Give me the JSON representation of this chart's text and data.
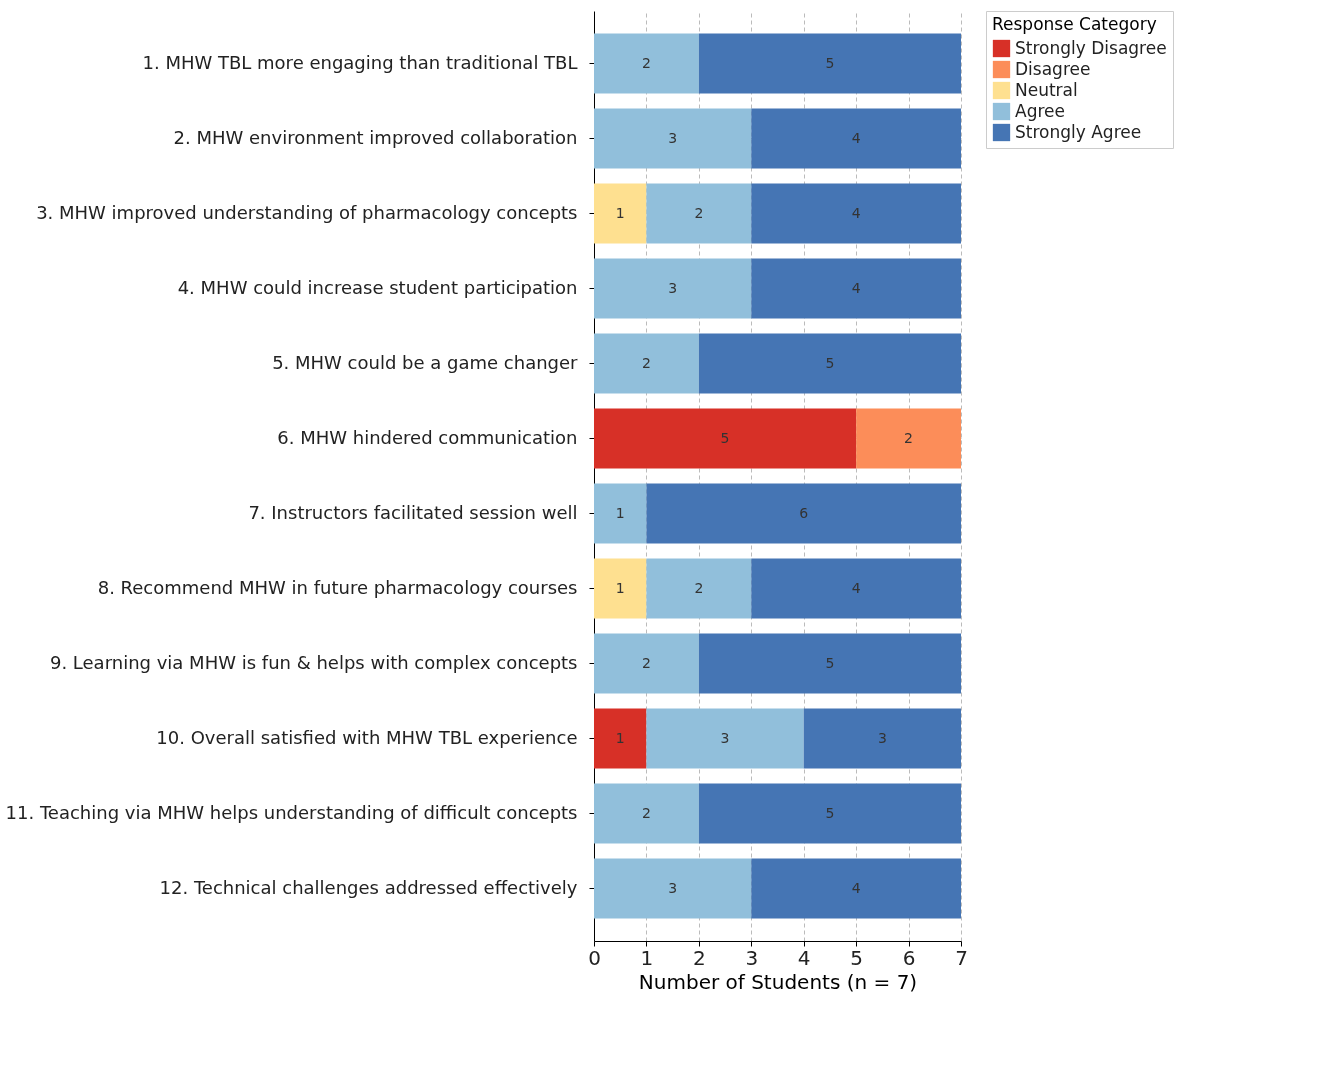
{
  "chart_data": {
    "type": "bar",
    "orientation": "horizontal",
    "stacked": true,
    "xlabel": "Number of Students (n = 7)",
    "legend_title": "Response Category",
    "legend": "top right",
    "grid": true,
    "data_labels": true,
    "xlim": [
      0,
      7
    ],
    "xticks": [
      0,
      1,
      2,
      3,
      4,
      5,
      6,
      7
    ],
    "categories": [
      "1. MHW TBL more engaging than traditional TBL",
      "2. MHW environment improved collaboration",
      "3. MHW improved understanding of pharmacology concepts",
      "4. MHW could increase student participation",
      "5. MHW could be a game changer",
      "6. MHW hindered communication",
      "7. Instructors facilitated session well",
      "8. Recommend MHW in future pharmacology courses",
      "9. Learning via MHW is fun & helps with complex concepts",
      "10. Overall satisfied with MHW TBL experience",
      "11. Teaching via MHW helps understanding of difficult concepts",
      "12. Technical challenges addressed effectively"
    ],
    "series": [
      {
        "name": "Strongly Disagree",
        "color": "#d73027",
        "values": [
          null,
          null,
          null,
          null,
          null,
          5,
          null,
          null,
          null,
          1,
          null,
          null
        ]
      },
      {
        "name": "Disagree",
        "color": "#fc8d59",
        "values": [
          null,
          null,
          null,
          null,
          null,
          2,
          null,
          null,
          null,
          null,
          null,
          null
        ]
      },
      {
        "name": "Neutral",
        "color": "#fee090",
        "values": [
          null,
          null,
          1,
          null,
          null,
          null,
          null,
          1,
          null,
          null,
          null,
          null
        ]
      },
      {
        "name": "Agree",
        "color": "#91bfdb",
        "values": [
          2,
          3,
          2,
          3,
          2,
          null,
          1,
          2,
          2,
          3,
          2,
          3
        ]
      },
      {
        "name": "Strongly Agree",
        "color": "#4575b4",
        "values": [
          5,
          4,
          4,
          4,
          5,
          null,
          6,
          4,
          5,
          3,
          5,
          4
        ]
      }
    ]
  }
}
